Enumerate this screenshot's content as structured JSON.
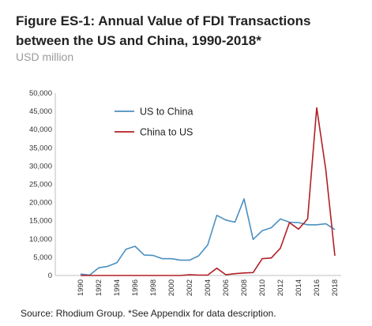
{
  "figure": {
    "title": "Figure ES-1: Annual Value of FDI Transactions between the US and China, 1990-2018*",
    "subtitle": "USD million",
    "source": "Source: Rhodium Group. *See Appendix for data description."
  },
  "chart_data": {
    "type": "line",
    "title": "Figure ES-1: Annual Value of FDI Transactions between the US and China, 1990-2018*",
    "subtitle": "USD million",
    "xlabel": "",
    "ylabel": "",
    "x": [
      1990,
      1991,
      1992,
      1993,
      1994,
      1995,
      1996,
      1997,
      1998,
      1999,
      2000,
      2001,
      2002,
      2003,
      2004,
      2005,
      2006,
      2007,
      2008,
      2009,
      2010,
      2011,
      2012,
      2013,
      2014,
      2015,
      2016,
      2017,
      2018
    ],
    "x_tick_labels": [
      "1990",
      "1992",
      "1994",
      "1996",
      "1998",
      "2000",
      "2002",
      "2004",
      "2006",
      "2008",
      "2010",
      "2012",
      "2014",
      "2016",
      "2018"
    ],
    "y_tick_labels": [
      "0",
      "5,000",
      "10,000",
      "15,000",
      "20,000",
      "25,000",
      "30,000",
      "35,000",
      "40,000",
      "45,000",
      "50,000"
    ],
    "ylim": [
      0,
      50000
    ],
    "grid": false,
    "legend_position": "top-left",
    "series": [
      {
        "name": "US to China",
        "color": "#4a8fc0",
        "values": [
          400,
          100,
          2100,
          2500,
          3500,
          7200,
          8000,
          5600,
          5500,
          4600,
          4600,
          4200,
          4200,
          5400,
          8400,
          16500,
          15200,
          14600,
          21000,
          9900,
          12300,
          13100,
          15500,
          14600,
          14500,
          13900,
          13900,
          14200,
          12600
        ]
      },
      {
        "name": "China to US",
        "color": "#b21f26",
        "values": [
          0,
          0,
          0,
          0,
          0,
          0,
          0,
          0,
          0,
          0,
          0,
          0,
          200,
          100,
          100,
          2000,
          200,
          500,
          700,
          800,
          4600,
          4800,
          7500,
          14500,
          12700,
          15500,
          46000,
          29000,
          5400
        ]
      }
    ]
  }
}
